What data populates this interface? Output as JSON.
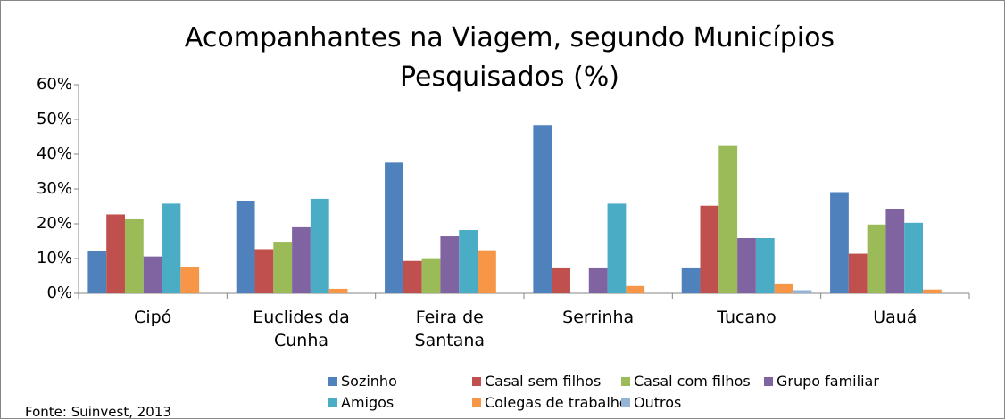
{
  "chart_data": {
    "type": "bar",
    "title": "Acompanhantes na Viagem, segundo Municípios Pesquisados (%)",
    "source": "Fonte: Suinvest, 2013",
    "categories": [
      "Cipó",
      "Euclides da Cunha",
      "Feira de Santana",
      "Serrinha",
      "Tucano",
      "Uauá"
    ],
    "series": [
      {
        "name": "Sozinho",
        "color": "#4f81bd",
        "values": [
          12.2,
          26.6,
          37.6,
          48.4,
          7.2,
          29.1
        ]
      },
      {
        "name": "Casal sem filhos",
        "color": "#c0504d",
        "values": [
          22.7,
          12.7,
          9.3,
          7.2,
          25.2,
          11.4
        ]
      },
      {
        "name": "Casal com filhos",
        "color": "#9bbb59",
        "values": [
          21.3,
          14.6,
          10.1,
          0,
          42.4,
          19.8
        ]
      },
      {
        "name": "Grupo familiar",
        "color": "#8064a2",
        "values": [
          10.6,
          19.0,
          16.4,
          7.2,
          15.9,
          24.2
        ]
      },
      {
        "name": "Amigos",
        "color": "#4bacc6",
        "values": [
          25.8,
          27.2,
          18.2,
          25.8,
          15.9,
          20.3
        ]
      },
      {
        "name": "Colegas de trabalho",
        "color": "#f79646",
        "values": [
          7.6,
          1.3,
          12.4,
          2.1,
          2.6,
          1.1
        ]
      },
      {
        "name": "Outros",
        "color": "#95b3d7",
        "values": [
          0,
          0,
          0,
          0,
          0.9,
          0
        ]
      }
    ],
    "ylim": [
      0,
      60
    ],
    "yticks": [
      {
        "value": 0,
        "label": "0%"
      },
      {
        "value": 10,
        "label": "10%"
      },
      {
        "value": 20,
        "label": "20%"
      },
      {
        "value": 30,
        "label": "30%"
      },
      {
        "value": 40,
        "label": "40%"
      },
      {
        "value": 50,
        "label": "50%"
      },
      {
        "value": 60,
        "label": "60%"
      }
    ],
    "grid": false,
    "legend": "bottom"
  }
}
